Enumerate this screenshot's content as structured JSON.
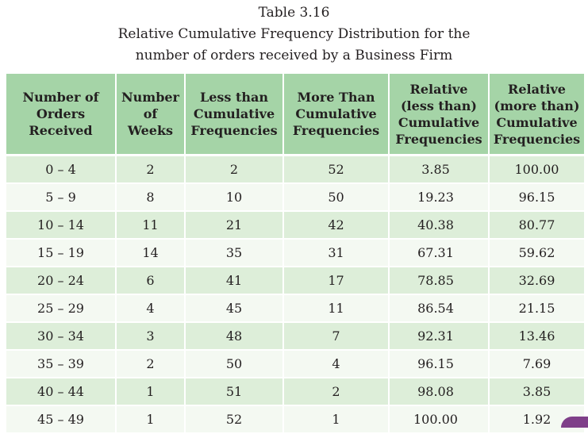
{
  "caption": {
    "table_number": "Table 3.16",
    "title_line1": "Relative Cumulative Frequency Distribution for the",
    "title_line2": "number of orders received by a Business Firm"
  },
  "table": {
    "headers": [
      "Number of\nOrders\nReceived",
      "Number\nof\nWeeks",
      "Less than\nCumulative\nFrequencies",
      "More Than\nCumulative\nFrequencies",
      "Relative\n(less than)\nCumulative\nFrequencies",
      "Relative\n(more than)\nCumulative\nFrequencies"
    ],
    "rows": [
      [
        "0 – 4",
        "2",
        "2",
        "52",
        "3.85",
        "100.00"
      ],
      [
        "5 – 9",
        "8",
        "10",
        "50",
        "19.23",
        "96.15"
      ],
      [
        "10 – 14",
        "11",
        "21",
        "42",
        "40.38",
        "80.77"
      ],
      [
        "15 – 19",
        "14",
        "35",
        "31",
        "67.31",
        "59.62"
      ],
      [
        "20 – 24",
        "6",
        "41",
        "17",
        "78.85",
        "32.69"
      ],
      [
        "25 – 29",
        "4",
        "45",
        "11",
        "86.54",
        "21.15"
      ],
      [
        "30 – 34",
        "3",
        "48",
        "7",
        "92.31",
        "13.46"
      ],
      [
        "35 – 39",
        "2",
        "50",
        "4",
        "96.15",
        "7.69"
      ],
      [
        "40 – 44",
        "1",
        "51",
        "2",
        "98.08",
        "3.85"
      ],
      [
        "45 – 49",
        "1",
        "52",
        "1",
        "100.00",
        "1.92"
      ]
    ]
  },
  "colors": {
    "header_bg": "#a5d4a7",
    "row_odd_bg": "#ddeed9",
    "row_even_bg": "#f4f9f2",
    "corner_accent": "#7f3f89"
  }
}
